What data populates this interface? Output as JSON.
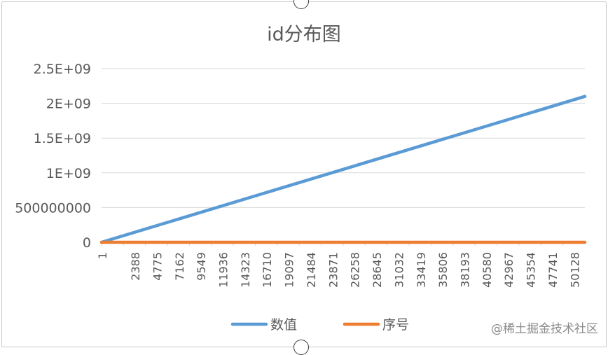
{
  "chart_data": {
    "type": "line",
    "title": "id分布图",
    "categories": [
      "1",
      "2388",
      "4775",
      "7162",
      "9549",
      "11936",
      "14323",
      "16710",
      "19097",
      "21484",
      "23871",
      "26258",
      "28645",
      "31032",
      "33419",
      "35806",
      "38193",
      "40580",
      "42967",
      "45354",
      "47741",
      "50128"
    ],
    "x_range": [
      1,
      52000
    ],
    "ylim": [
      0,
      2500000000
    ],
    "y_ticks": [
      0,
      500000000,
      1000000000,
      1500000000,
      2000000000,
      2500000000
    ],
    "y_tick_labels": [
      "0",
      "500000000",
      "1E+09",
      "1.5E+09",
      "2E+09",
      "2.5E+09"
    ],
    "series": [
      {
        "name": "数值",
        "color": "#5b9bd5",
        "x": [
          1,
          52000
        ],
        "y": [
          0,
          2100000000
        ]
      },
      {
        "name": "序号",
        "color": "#ed7d31",
        "x": [
          1,
          52000
        ],
        "y": [
          1,
          52000
        ]
      }
    ],
    "grid": true,
    "legend_position": "bottom"
  },
  "watermark": "@稀土掘金技术社区"
}
